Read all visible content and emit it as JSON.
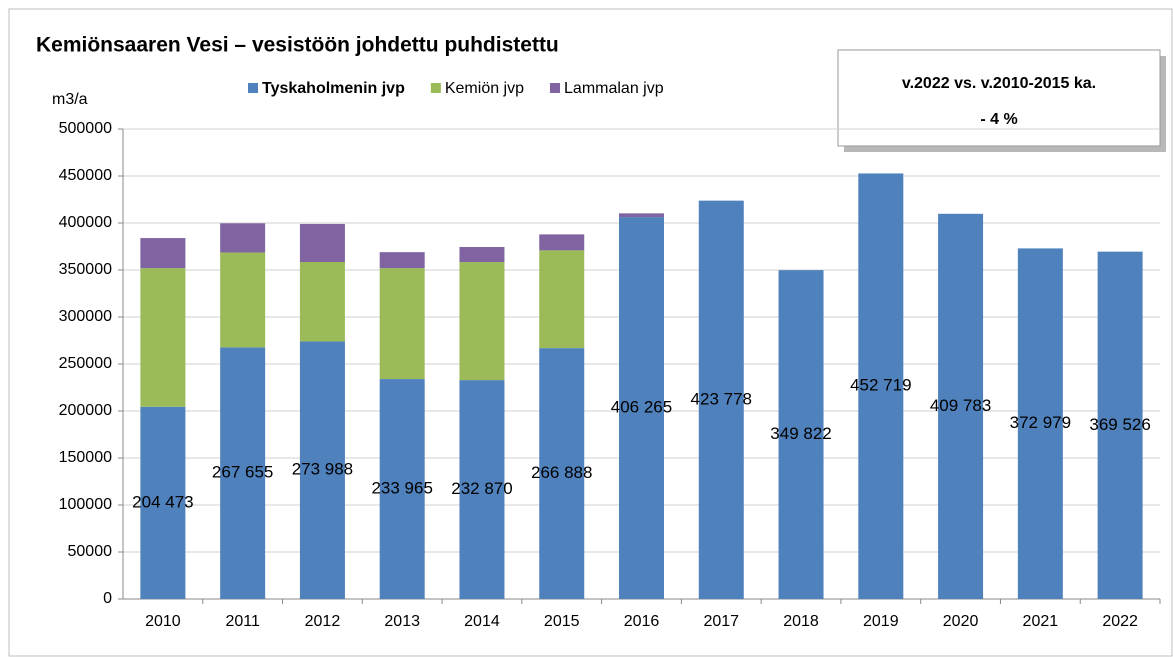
{
  "chart_data": {
    "type": "bar",
    "title": "Kemiönsaaren Vesi – vesistöön johdettu puhdistettu",
    "y_label": "m3/a",
    "annotation": [
      "v.2022 vs. v.2010-2015 ka.",
      "- 4 %"
    ],
    "stacked": true,
    "categories": [
      "2010",
      "2011",
      "2012",
      "2013",
      "2014",
      "2015",
      "2016",
      "2017",
      "2018",
      "2019",
      "2020",
      "2021",
      "2022"
    ],
    "series": [
      {
        "name": "Tyskaholmenin jvp",
        "color": "#4f81bd",
        "values": [
          204473,
          267655,
          273988,
          233965,
          232870,
          266888,
          406265,
          423778,
          349822,
          452719,
          409783,
          372979,
          369526
        ],
        "value_labels": [
          "204 473",
          "267 655",
          "273 988",
          "233 965",
          "232 870",
          "266 888",
          "406 265",
          "423 778",
          "349 822",
          "452 719",
          "409 783",
          "372 979",
          "369 526"
        ]
      },
      {
        "name": "Kemiön jvp",
        "color": "#9bbb59",
        "values": [
          147500,
          101000,
          84500,
          118000,
          125600,
          104000,
          null,
          null,
          null,
          null,
          null,
          null,
          null
        ]
      },
      {
        "name": "Lammalan jvp",
        "color": "#8064a2",
        "values": [
          32000,
          31000,
          40500,
          17000,
          16000,
          17000,
          4000,
          null,
          null,
          null,
          null,
          null,
          null
        ]
      }
    ],
    "ylim": [
      0,
      500000
    ],
    "yticks": [
      0,
      50000,
      100000,
      150000,
      200000,
      250000,
      300000,
      350000,
      400000,
      450000,
      500000
    ],
    "grid": true,
    "legend": "top"
  }
}
